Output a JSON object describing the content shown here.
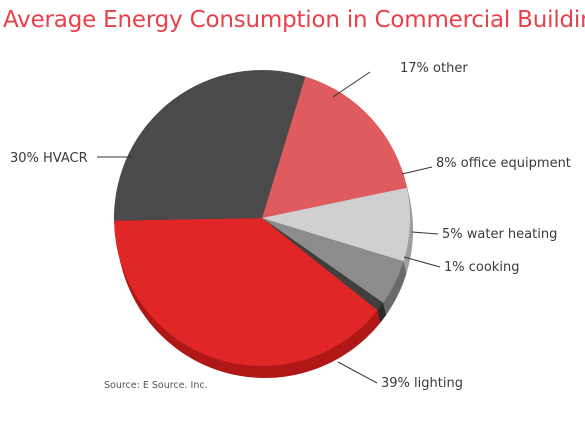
{
  "chart_data": {
    "type": "pie",
    "title": "Average Energy Consumption in Commercial Buildings",
    "source": "Source: E Source. Inc.",
    "unit": "%",
    "slices": [
      {
        "label": "17% other",
        "value": 17,
        "color": "#e05b5e",
        "depth_color": "#b84045"
      },
      {
        "label": "8% office equipment",
        "value": 8,
        "color": "#d0d0d0",
        "depth_color": "#9e9e9e"
      },
      {
        "label": "5% water heating",
        "value": 5,
        "color": "#8c8c8c",
        "depth_color": "#6a6a6a"
      },
      {
        "label": "1% cooking",
        "value": 1,
        "color": "#3f3f3f",
        "depth_color": "#2c2c2c"
      },
      {
        "label": "39% lighting",
        "value": 39,
        "color": "#e02626",
        "depth_color": "#b01818"
      },
      {
        "label": "30% HVACR",
        "value": 30,
        "color": "#4a4a4a",
        "depth_color": "#333333"
      }
    ],
    "title_color": "#e8414a",
    "grid": false,
    "legend": "none"
  }
}
